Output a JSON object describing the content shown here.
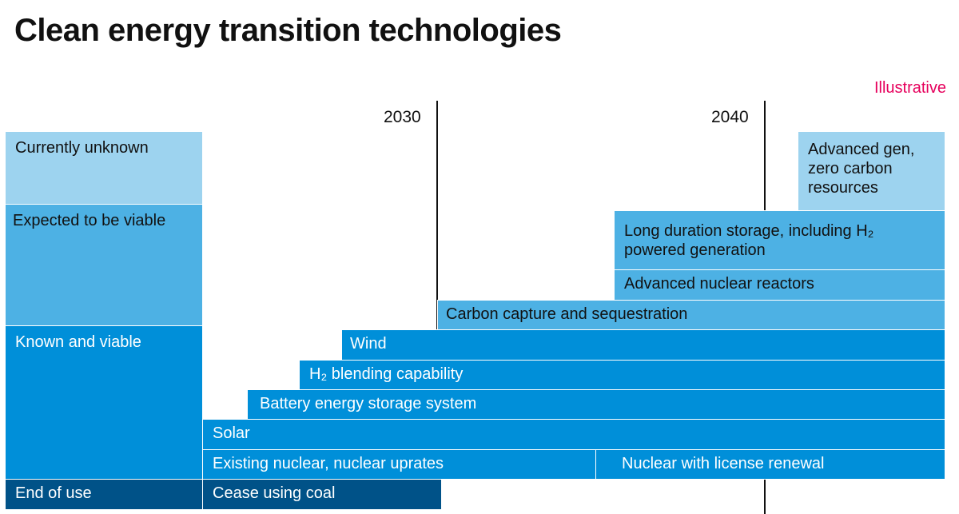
{
  "title": "Clean energy transition technologies",
  "note": "Illustrative",
  "years": [
    "2030",
    "2040"
  ],
  "categories": {
    "unknown": "Currently unknown",
    "expected": "Expected to be viable",
    "known": "Known and viable",
    "end": "End of use"
  },
  "bars": {
    "advanced_gen": "Advanced gen, zero carbon resources",
    "long_duration": "Long duration storage, including H₂ powered generation",
    "advanced_nuclear": "Advanced nuclear reactors",
    "ccs": "Carbon capture and sequestration",
    "wind": "Wind",
    "h2_blending": "H₂ blending capability",
    "battery": "Battery energy storage system",
    "solar": "Solar",
    "existing_nuclear": "Existing nuclear, nuclear uprates",
    "license_renewal": "Nuclear with license renewal",
    "coal": "Cease using coal"
  },
  "colors": {
    "unknown": "#9dd3ef",
    "expected": "#4db1e4",
    "known": "#008fd9",
    "end": "#005288",
    "note": "#e6005c"
  }
}
